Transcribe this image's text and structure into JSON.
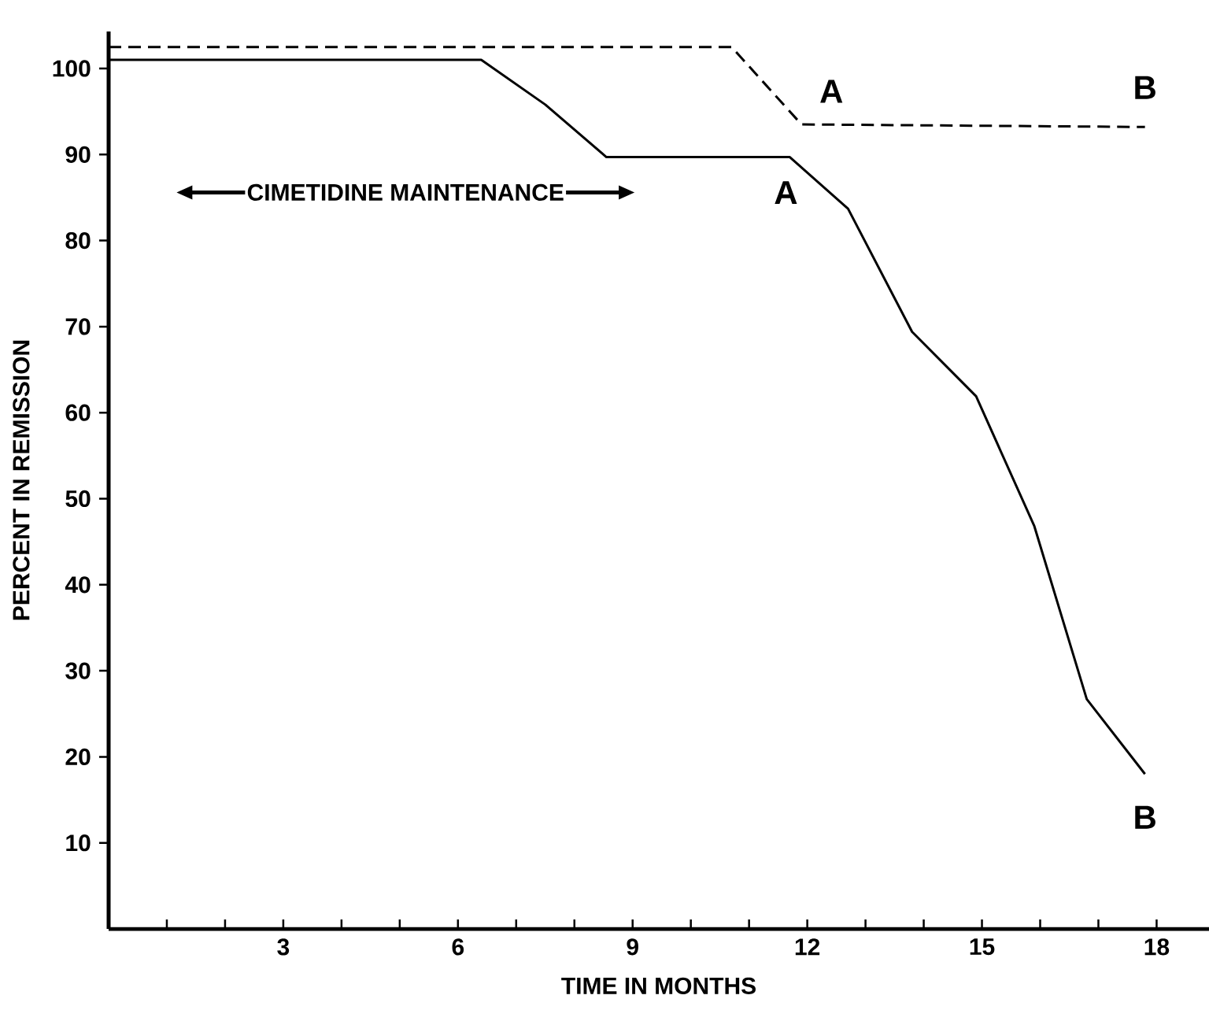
{
  "chart_data": {
    "type": "line",
    "xlabel": "TIME     IN     MONTHS",
    "ylabel": "PERCENT     IN     REMISSION",
    "xlim": [
      0,
      18.9
    ],
    "ylim": [
      0,
      104.3
    ],
    "xticks": [
      {
        "value": 1,
        "label": null
      },
      {
        "value": 2,
        "label": null
      },
      3,
      {
        "value": 4,
        "label": null
      },
      {
        "value": 5,
        "label": null
      },
      6,
      {
        "value": 7,
        "label": null
      },
      {
        "value": 8,
        "label": null
      },
      9,
      {
        "value": 10,
        "label": null
      },
      {
        "value": 11,
        "label": null
      },
      12,
      {
        "value": 13,
        "label": null
      },
      {
        "value": 14,
        "label": null
      },
      15,
      {
        "value": 16,
        "label": null
      },
      {
        "value": 17,
        "label": null
      },
      18
    ],
    "yticks": [
      10,
      20,
      30,
      40,
      50,
      60,
      70,
      80,
      90,
      100
    ],
    "series": [
      {
        "color": "#000000",
        "line_style": "dashed",
        "x": [
          0,
          10.7,
          11.9,
          17.8
        ],
        "values": [
          102.5,
          102.5,
          93.5,
          93.2
        ]
      },
      {
        "color": "#000000",
        "line_style": "solid",
        "x": [
          0,
          6.4,
          7.5,
          8.55,
          11.7,
          12.7,
          13.8,
          14.9,
          15.9,
          16.8,
          17.8
        ],
        "values": [
          101,
          101,
          95.8,
          89.7,
          89.7,
          83.7,
          69.4,
          61.9,
          46.8,
          26.7,
          18.0
        ]
      }
    ],
    "annotations": [
      "CIMETIDINE   MAINTENANCE",
      {
        "text": "A",
        "x": 11.9,
        "y": 93.5
      },
      {
        "text": "B",
        "x": 17.8,
        "y": 93.2
      },
      {
        "text": "A",
        "x": 11.7,
        "y": 89.7
      },
      {
        "text": "B",
        "x": 17.8,
        "y": 18.0
      }
    ],
    "grid": false,
    "marker": "none"
  }
}
